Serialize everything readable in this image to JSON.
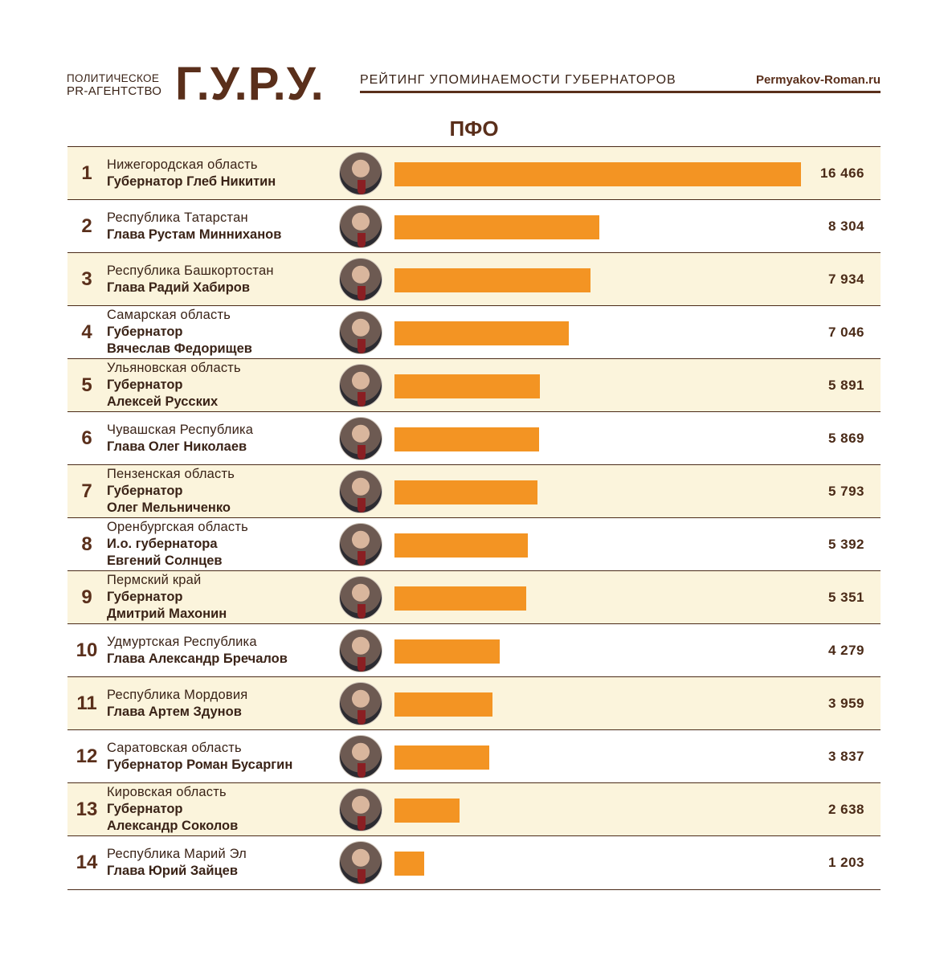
{
  "header": {
    "agency_line1": "ПОЛИТИЧЕСКОЕ",
    "agency_line2": "PR-АГЕНТСТВО",
    "logo": "Г.У.Р.У.",
    "rating_title": "РЕЙТИНГ УПОМИНАЕМОСТИ ГУБЕРНАТОРОВ",
    "site": "Permyakov-Roman.ru"
  },
  "region_title": "ПФО",
  "colors": {
    "bar": "#f39423",
    "text": "#4a2a17",
    "shade": "#fbf4dc"
  },
  "chart_data": {
    "type": "bar",
    "title": "ПФО",
    "xlim": [
      0,
      16466
    ],
    "rows": [
      {
        "rank": "1",
        "region": "Нижегородская область",
        "name": "Губернатор Глеб Никитин",
        "value": 16466,
        "label": "16 466",
        "photo_icon": "portrait-photo"
      },
      {
        "rank": "2",
        "region": "Республика Татарстан",
        "name": "Глава Рустам Минниханов",
        "value": 8304,
        "label": "8 304",
        "photo_icon": "portrait-photo"
      },
      {
        "rank": "3",
        "region": "Республика Башкортостан",
        "name": "Глава Радий Хабиров",
        "value": 7934,
        "label": "7 934",
        "photo_icon": "portrait-photo"
      },
      {
        "rank": "4",
        "region": "Самарская область",
        "name": "Губернатор\nВячеслав Федорищев",
        "value": 7046,
        "label": "7 046",
        "photo_icon": "portrait-photo"
      },
      {
        "rank": "5",
        "region": "Ульяновская область",
        "name": "Губернатор\nАлексей Русских",
        "value": 5891,
        "label": "5 891",
        "photo_icon": "portrait-photo"
      },
      {
        "rank": "6",
        "region": "Чувашская Республика",
        "name": "Глава Олег Николаев",
        "value": 5869,
        "label": "5 869",
        "photo_icon": "portrait-photo"
      },
      {
        "rank": "7",
        "region": "Пензенская область",
        "name": "Губернатор\nОлег Мельниченко",
        "value": 5793,
        "label": "5 793",
        "photo_icon": "portrait-photo"
      },
      {
        "rank": "8",
        "region": "Оренбургская область",
        "name": "И.о. губернатора\nЕвгений Солнцев",
        "value": 5392,
        "label": "5 392",
        "photo_icon": "portrait-photo"
      },
      {
        "rank": "9",
        "region": "Пермский край",
        "name": "Губернатор\nДмитрий Махонин",
        "value": 5351,
        "label": "5 351",
        "photo_icon": "portrait-photo"
      },
      {
        "rank": "10",
        "region": "Удмуртская Республика",
        "name": "Глава Александр Бречалов",
        "value": 4279,
        "label": "4 279",
        "photo_icon": "portrait-photo"
      },
      {
        "rank": "11",
        "region": "Республика Мордовия",
        "name": "Глава Артем Здунов",
        "value": 3959,
        "label": "3 959",
        "photo_icon": "portrait-photo"
      },
      {
        "rank": "12",
        "region": "Саратовская область",
        "name": "Губернатор Роман Бусаргин",
        "value": 3837,
        "label": "3 837",
        "photo_icon": "portrait-photo"
      },
      {
        "rank": "13",
        "region": "Кировская область",
        "name": "Губернатор\nАлександр Соколов",
        "value": 2638,
        "label": "2 638",
        "photo_icon": "portrait-photo"
      },
      {
        "rank": "14",
        "region": "Республика Марий Эл",
        "name": "Глава Юрий Зайцев",
        "value": 1203,
        "label": "1 203",
        "photo_icon": "portrait-photo"
      }
    ]
  }
}
